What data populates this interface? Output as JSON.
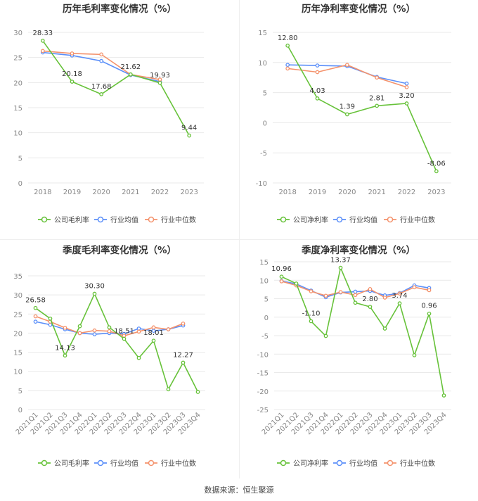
{
  "colors": {
    "company": "#67c23a",
    "industry_avg": "#5b8ff9",
    "industry_median": "#f4926c",
    "grid": "#e9e9e9",
    "axis_text": "#888888"
  },
  "source": "数据来源：恒生聚源",
  "chart_data": [
    {
      "type": "line",
      "title": "历年毛利率变化情况（%）",
      "categories": [
        "2018",
        "2019",
        "2020",
        "2021",
        "2022",
        "2023"
      ],
      "ylim": [
        0,
        30
      ],
      "yticks": [
        0,
        5,
        10,
        15,
        20,
        25,
        30
      ],
      "series": [
        {
          "name": "公司毛利率",
          "values": [
            28.33,
            20.18,
            17.68,
            21.62,
            19.93,
            9.44
          ],
          "color": "#67c23a"
        },
        {
          "name": "行业均值",
          "values": [
            26.0,
            25.4,
            24.3,
            21.5,
            20.2,
            null
          ],
          "color": "#5b8ff9"
        },
        {
          "name": "行业中位数",
          "values": [
            26.3,
            25.8,
            25.6,
            21.6,
            20.6,
            null
          ],
          "color": "#f4926c"
        }
      ],
      "data_labels": [
        {
          "index": 0,
          "text": "28.33"
        },
        {
          "index": 1,
          "text": "20.18"
        },
        {
          "index": 2,
          "text": "17.68"
        },
        {
          "index": 3,
          "text": "21.62"
        },
        {
          "index": 4,
          "text": "19.93"
        },
        {
          "index": 5,
          "text": "9.44"
        }
      ]
    },
    {
      "type": "line",
      "title": "历年净利率变化情况（%）",
      "categories": [
        "2018",
        "2019",
        "2020",
        "2021",
        "2022",
        "2023"
      ],
      "ylim": [
        -10,
        15
      ],
      "yticks": [
        -10,
        -5,
        0,
        5,
        10,
        15
      ],
      "series": [
        {
          "name": "公司净利率",
          "values": [
            12.8,
            4.03,
            1.39,
            2.81,
            3.2,
            -8.06
          ],
          "color": "#67c23a"
        },
        {
          "name": "行业均值",
          "values": [
            9.6,
            9.5,
            9.4,
            7.6,
            6.5,
            null
          ],
          "color": "#5b8ff9"
        },
        {
          "name": "行业中位数",
          "values": [
            9.0,
            8.4,
            9.6,
            7.5,
            5.9,
            null
          ],
          "color": "#f4926c"
        }
      ],
      "data_labels": [
        {
          "index": 0,
          "text": "12.80"
        },
        {
          "index": 1,
          "text": "4.03"
        },
        {
          "index": 2,
          "text": "1.39"
        },
        {
          "index": 3,
          "text": "2.81"
        },
        {
          "index": 4,
          "text": "3.20"
        },
        {
          "index": 5,
          "text": "-8.06"
        }
      ]
    },
    {
      "type": "line",
      "title": "季度毛利率变化情况（%）",
      "categories": [
        "2021Q1",
        "2021Q2",
        "2021Q3",
        "2021Q4",
        "2022Q1",
        "2022Q2",
        "2022Q3",
        "2022Q4",
        "2023Q1",
        "2023Q2",
        "2023Q3",
        "2023Q4"
      ],
      "ylim": [
        0,
        35
      ],
      "yticks": [
        0,
        5,
        10,
        15,
        20,
        25,
        30,
        35
      ],
      "series": [
        {
          "name": "公司毛利率",
          "values": [
            26.58,
            23.8,
            14.13,
            21.8,
            30.3,
            21.5,
            18.51,
            13.5,
            18.01,
            5.3,
            12.27,
            4.6
          ],
          "color": "#67c23a"
        },
        {
          "name": "行业均值",
          "values": [
            23.0,
            22.2,
            21.0,
            20.0,
            19.7,
            20.0,
            19.8,
            21.2,
            20.6,
            21.0,
            22.0,
            null
          ],
          "color": "#5b8ff9"
        },
        {
          "name": "行业中位数",
          "values": [
            24.4,
            23.0,
            21.4,
            20.0,
            20.7,
            20.5,
            19.3,
            20.4,
            21.5,
            21.0,
            22.5,
            null
          ],
          "color": "#f4926c"
        }
      ],
      "data_labels": [
        {
          "index": 0,
          "text": "26.58"
        },
        {
          "index": 2,
          "text": "14.13"
        },
        {
          "index": 4,
          "text": "30.30"
        },
        {
          "index": 6,
          "text": "18.51"
        },
        {
          "index": 8,
          "text": "18.01"
        },
        {
          "index": 10,
          "text": "12.27"
        }
      ]
    },
    {
      "type": "line",
      "title": "季度净利率变化情况（%）",
      "categories": [
        "2021Q1",
        "2021Q2",
        "2021Q3",
        "2021Q4",
        "2022Q1",
        "2022Q2",
        "2022Q3",
        "2022Q4",
        "2023Q1",
        "2023Q2",
        "2023Q3",
        "2023Q4"
      ],
      "ylim": [
        -25,
        15
      ],
      "yticks": [
        -25,
        -20,
        -15,
        -10,
        -5,
        0,
        5,
        10,
        15
      ],
      "series": [
        {
          "name": "公司净利率",
          "values": [
            10.96,
            9.1,
            -1.1,
            -5.1,
            13.37,
            3.9,
            2.8,
            -3.1,
            3.74,
            -10.3,
            0.96,
            -21.2
          ],
          "color": "#67c23a"
        },
        {
          "name": "行业均值",
          "values": [
            9.8,
            9.0,
            7.2,
            5.4,
            6.7,
            6.9,
            7.1,
            5.9,
            6.5,
            8.6,
            7.9,
            null
          ],
          "color": "#5b8ff9"
        },
        {
          "name": "行业中位数",
          "values": [
            9.7,
            8.6,
            7.0,
            5.8,
            6.8,
            6.0,
            7.6,
            5.3,
            6.4,
            8.1,
            7.3,
            null
          ],
          "color": "#f4926c"
        }
      ],
      "data_labels": [
        {
          "index": 0,
          "text": "10.96"
        },
        {
          "index": 2,
          "text": "-1.10"
        },
        {
          "index": 4,
          "text": "13.37"
        },
        {
          "index": 6,
          "text": "2.80"
        },
        {
          "index": 8,
          "text": "3.74"
        },
        {
          "index": 10,
          "text": "0.96"
        }
      ]
    }
  ]
}
